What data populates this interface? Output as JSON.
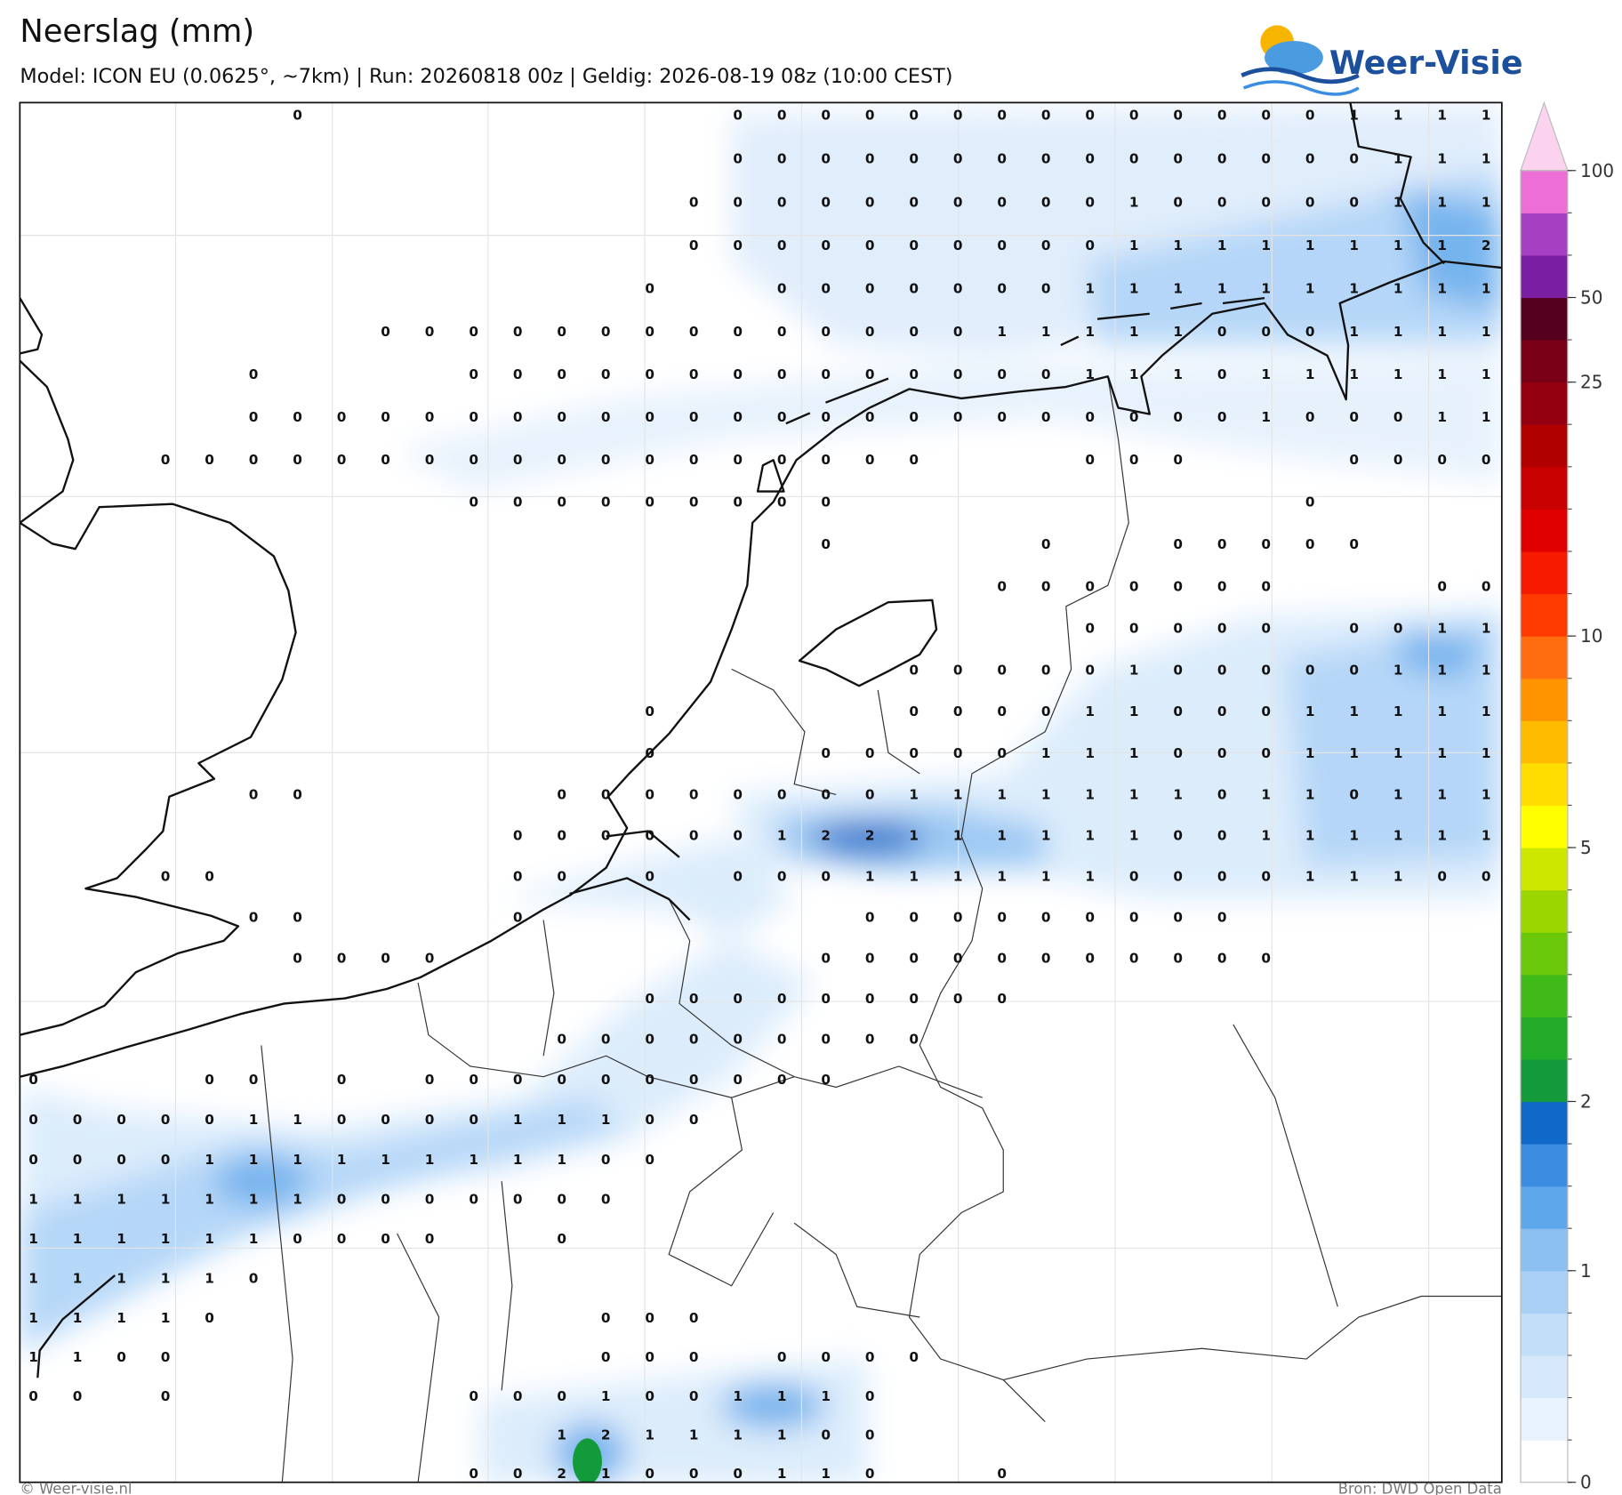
{
  "map": {
    "title": "Neerslag (mm)",
    "subtitle": "Model: ICON EU (0.0625°, ~7km)  |  Run: 20260818 00z  |  Geldig: 2026-08-19 08z (10:00 CEST)",
    "logo": "Weer-Visie",
    "footer_left": "© Weer-visie.nl",
    "footer_right": "Bron: DWD Open Data",
    "values": [
      [
        null,
        null,
        null,
        null,
        null,
        null,
        0,
        null,
        null,
        null,
        null,
        null,
        null,
        null,
        null,
        null,
        0,
        0,
        0,
        0,
        0,
        0,
        0,
        0,
        0,
        0,
        0,
        0,
        0,
        0,
        1,
        1,
        1,
        1
      ],
      [
        null,
        null,
        null,
        null,
        null,
        null,
        null,
        null,
        null,
        null,
        null,
        null,
        null,
        null,
        null,
        null,
        0,
        0,
        0,
        0,
        0,
        0,
        0,
        0,
        0,
        0,
        0,
        0,
        0,
        0,
        0,
        1,
        1,
        1
      ],
      [
        null,
        null,
        null,
        null,
        null,
        null,
        null,
        null,
        null,
        null,
        null,
        null,
        null,
        null,
        null,
        0,
        0,
        0,
        0,
        0,
        0,
        0,
        0,
        0,
        0,
        1,
        0,
        0,
        0,
        0,
        0,
        1,
        1,
        1
      ],
      [
        null,
        null,
        null,
        null,
        null,
        null,
        null,
        null,
        null,
        null,
        null,
        null,
        null,
        null,
        null,
        0,
        0,
        0,
        0,
        0,
        0,
        0,
        0,
        0,
        0,
        1,
        1,
        1,
        1,
        1,
        1,
        1,
        1,
        2
      ],
      [
        null,
        null,
        null,
        null,
        null,
        null,
        null,
        null,
        null,
        null,
        null,
        null,
        null,
        null,
        0,
        null,
        null,
        0,
        0,
        0,
        0,
        0,
        0,
        0,
        1,
        1,
        1,
        1,
        1,
        1,
        1,
        1,
        1,
        1
      ],
      [
        null,
        null,
        null,
        null,
        null,
        null,
        null,
        null,
        0,
        0,
        0,
        0,
        0,
        0,
        0,
        0,
        0,
        0,
        0,
        0,
        0,
        0,
        1,
        1,
        1,
        1,
        1,
        0,
        0,
        0,
        1,
        1,
        1,
        1
      ],
      [
        null,
        null,
        null,
        null,
        null,
        0,
        null,
        null,
        null,
        null,
        0,
        0,
        0,
        0,
        0,
        0,
        0,
        0,
        0,
        0,
        0,
        0,
        0,
        0,
        1,
        1,
        1,
        0,
        1,
        1,
        1,
        1,
        1,
        1
      ],
      [
        null,
        null,
        null,
        null,
        null,
        0,
        0,
        0,
        0,
        0,
        0,
        0,
        0,
        0,
        0,
        0,
        0,
        0,
        0,
        0,
        0,
        0,
        0,
        0,
        0,
        0,
        0,
        0,
        1,
        0,
        0,
        0,
        1,
        1
      ],
      [
        null,
        null,
        null,
        0,
        0,
        0,
        0,
        0,
        0,
        0,
        0,
        0,
        0,
        0,
        0,
        0,
        0,
        0,
        0,
        0,
        0,
        null,
        null,
        null,
        0,
        0,
        0,
        null,
        null,
        null,
        0,
        0,
        0,
        0
      ],
      [
        null,
        null,
        null,
        null,
        null,
        null,
        null,
        null,
        null,
        null,
        0,
        0,
        0,
        0,
        0,
        0,
        0,
        0,
        0,
        null,
        null,
        null,
        null,
        null,
        null,
        null,
        null,
        null,
        null,
        0,
        null,
        null,
        null,
        null
      ],
      [
        null,
        null,
        null,
        null,
        null,
        null,
        null,
        null,
        null,
        null,
        null,
        null,
        null,
        null,
        null,
        null,
        null,
        null,
        0,
        null,
        null,
        null,
        null,
        0,
        null,
        null,
        0,
        0,
        0,
        0,
        0,
        null,
        null,
        null
      ],
      [
        null,
        null,
        null,
        null,
        null,
        null,
        null,
        null,
        null,
        null,
        null,
        null,
        null,
        null,
        null,
        null,
        null,
        null,
        null,
        null,
        null,
        null,
        0,
        0,
        0,
        0,
        0,
        0,
        0,
        null,
        null,
        null,
        0,
        0
      ],
      [
        null,
        null,
        null,
        null,
        null,
        null,
        null,
        null,
        null,
        null,
        null,
        null,
        null,
        null,
        null,
        null,
        null,
        null,
        null,
        null,
        null,
        null,
        null,
        null,
        0,
        0,
        0,
        0,
        0,
        null,
        0,
        0,
        1,
        1
      ],
      [
        null,
        null,
        null,
        null,
        null,
        null,
        null,
        null,
        null,
        null,
        null,
        null,
        null,
        null,
        null,
        null,
        null,
        null,
        null,
        null,
        0,
        0,
        0,
        0,
        0,
        1,
        0,
        0,
        0,
        0,
        0,
        1,
        1,
        1
      ],
      [
        null,
        null,
        null,
        null,
        null,
        null,
        null,
        null,
        null,
        null,
        null,
        null,
        null,
        null,
        0,
        null,
        null,
        null,
        null,
        null,
        0,
        0,
        0,
        0,
        1,
        1,
        0,
        0,
        0,
        1,
        1,
        1,
        1,
        1
      ],
      [
        null,
        null,
        null,
        null,
        null,
        null,
        null,
        null,
        null,
        null,
        null,
        null,
        null,
        null,
        0,
        null,
        null,
        null,
        0,
        0,
        0,
        0,
        0,
        1,
        1,
        1,
        0,
        0,
        0,
        1,
        1,
        1,
        1,
        1
      ],
      [
        null,
        null,
        null,
        null,
        null,
        0,
        0,
        null,
        null,
        null,
        null,
        null,
        0,
        0,
        0,
        0,
        0,
        0,
        0,
        0,
        1,
        1,
        1,
        1,
        1,
        1,
        1,
        0,
        1,
        1,
        0,
        1,
        1,
        1
      ],
      [
        null,
        null,
        null,
        null,
        null,
        null,
        null,
        null,
        null,
        null,
        null,
        0,
        0,
        0,
        0,
        0,
        0,
        1,
        2,
        2,
        1,
        1,
        1,
        1,
        1,
        1,
        0,
        0,
        1,
        1,
        1,
        1,
        1,
        1
      ],
      [
        null,
        null,
        null,
        0,
        0,
        null,
        null,
        null,
        null,
        null,
        null,
        0,
        0,
        null,
        0,
        null,
        0,
        0,
        0,
        1,
        1,
        1,
        1,
        1,
        1,
        0,
        0,
        0,
        0,
        1,
        1,
        1,
        0,
        0
      ],
      [
        null,
        null,
        null,
        null,
        null,
        0,
        0,
        null,
        null,
        null,
        null,
        0,
        null,
        null,
        null,
        null,
        null,
        null,
        null,
        0,
        0,
        0,
        0,
        0,
        0,
        0,
        0,
        0,
        null,
        null,
        null,
        null,
        null,
        null
      ],
      [
        null,
        null,
        null,
        null,
        null,
        null,
        0,
        0,
        0,
        0,
        null,
        null,
        null,
        null,
        null,
        null,
        null,
        null,
        0,
        0,
        0,
        0,
        0,
        0,
        0,
        0,
        0,
        0,
        0,
        null,
        null,
        null,
        null,
        null
      ],
      [
        null,
        null,
        null,
        null,
        null,
        null,
        null,
        null,
        null,
        null,
        null,
        null,
        null,
        null,
        0,
        0,
        0,
        0,
        0,
        0,
        0,
        0,
        0,
        null,
        null,
        null,
        null,
        null,
        null,
        null,
        null,
        null,
        null,
        null
      ],
      [
        null,
        null,
        null,
        null,
        null,
        null,
        null,
        null,
        null,
        null,
        null,
        null,
        0,
        0,
        0,
        0,
        0,
        0,
        0,
        0,
        0,
        null,
        null,
        null,
        null,
        null,
        null,
        null,
        null,
        null,
        null,
        null,
        null,
        null
      ],
      [
        0,
        null,
        null,
        null,
        0,
        0,
        null,
        0,
        null,
        0,
        0,
        0,
        0,
        0,
        0,
        0,
        0,
        0,
        0,
        null,
        null,
        null,
        null,
        null,
        null,
        null,
        null,
        null,
        null,
        null,
        null,
        null,
        null,
        null
      ],
      [
        0,
        0,
        0,
        0,
        0,
        1,
        1,
        0,
        0,
        0,
        0,
        1,
        1,
        1,
        0,
        0,
        null,
        null,
        null,
        null,
        null,
        null,
        null,
        null,
        null,
        null,
        null,
        null,
        null,
        null,
        null,
        null,
        null,
        null
      ],
      [
        0,
        0,
        0,
        0,
        1,
        1,
        1,
        1,
        1,
        1,
        1,
        1,
        1,
        0,
        0,
        null,
        null,
        null,
        null,
        null,
        null,
        null,
        null,
        null,
        null,
        null,
        null,
        null,
        null,
        null,
        null,
        null,
        null,
        null
      ],
      [
        1,
        1,
        1,
        1,
        1,
        1,
        1,
        0,
        0,
        0,
        0,
        0,
        0,
        0,
        null,
        null,
        null,
        null,
        null,
        null,
        null,
        null,
        null,
        null,
        null,
        null,
        null,
        null,
        null,
        null,
        null,
        null,
        null,
        null
      ],
      [
        1,
        1,
        1,
        1,
        1,
        1,
        0,
        0,
        0,
        0,
        null,
        null,
        0,
        null,
        null,
        null,
        null,
        null,
        null,
        null,
        null,
        null,
        null,
        null,
        null,
        null,
        null,
        null,
        null,
        null,
        null,
        null,
        null,
        null
      ],
      [
        1,
        1,
        1,
        1,
        1,
        0,
        null,
        null,
        null,
        null,
        null,
        null,
        null,
        null,
        null,
        null,
        null,
        null,
        null,
        null,
        null,
        null,
        null,
        null,
        null,
        null,
        null,
        null,
        null,
        null,
        null,
        null,
        null,
        null
      ],
      [
        1,
        1,
        1,
        1,
        0,
        null,
        null,
        null,
        null,
        null,
        null,
        null,
        null,
        0,
        0,
        0,
        null,
        null,
        null,
        null,
        null,
        null,
        null,
        null,
        null,
        null,
        null,
        null,
        null,
        null,
        null,
        null,
        null,
        null
      ],
      [
        1,
        1,
        0,
        0,
        null,
        null,
        null,
        null,
        null,
        null,
        null,
        null,
        null,
        0,
        0,
        0,
        null,
        0,
        0,
        0,
        0,
        null,
        null,
        null,
        null,
        null,
        null,
        null,
        null,
        null,
        null,
        null,
        null,
        null
      ],
      [
        0,
        0,
        null,
        0,
        null,
        null,
        null,
        null,
        null,
        null,
        0,
        0,
        0,
        1,
        0,
        0,
        1,
        1,
        1,
        0,
        null,
        null,
        null,
        null,
        null,
        null,
        null,
        null,
        null,
        null,
        null,
        null,
        null,
        null
      ],
      [
        null,
        null,
        null,
        null,
        null,
        null,
        null,
        null,
        null,
        null,
        null,
        null,
        1,
        2,
        1,
        1,
        1,
        1,
        0,
        0,
        null,
        null,
        null,
        null,
        null,
        null,
        null,
        null,
        null,
        null,
        null,
        null,
        null,
        null
      ],
      [
        null,
        null,
        null,
        null,
        null,
        null,
        null,
        null,
        null,
        null,
        0,
        0,
        2,
        1,
        0,
        0,
        0,
        1,
        1,
        0,
        null,
        null,
        0,
        null,
        null,
        null,
        null,
        null,
        null,
        null,
        null,
        null,
        null,
        null
      ]
    ],
    "colorbar": {
      "levels": [
        0,
        0.2,
        0.4,
        0.6,
        0.8,
        1,
        1.25,
        1.5,
        1.75,
        2,
        2.5,
        3,
        3.5,
        4,
        4.5,
        5,
        6,
        7,
        8,
        9,
        10,
        12.5,
        15,
        17.5,
        20,
        22.5,
        25,
        37.5,
        50,
        66.7,
        83.3,
        100
      ],
      "colors": [
        "#ffffff",
        "#e9f3fd",
        "#d6e9fb",
        "#c2def9",
        "#a9d0f7",
        "#8cc0f2",
        "#5fa7eb",
        "#3a8de0",
        "#1068c8",
        "#139a3a",
        "#22ab28",
        "#3fba18",
        "#6ac80a",
        "#9cd600",
        "#cde700",
        "#ffff00",
        "#ffdd00",
        "#ffbb00",
        "#ff9400",
        "#ff6d10",
        "#ff3a00",
        "#f61a00",
        "#e10000",
        "#c90000",
        "#b00000",
        "#950010",
        "#7a0018",
        "#560020",
        "#7a1fa3",
        "#a63fc2",
        "#ee6ed8"
      ],
      "extend_color": "#fbd3ef",
      "ticks": [
        0,
        1,
        2,
        5,
        10,
        25,
        50,
        100
      ]
    }
  }
}
